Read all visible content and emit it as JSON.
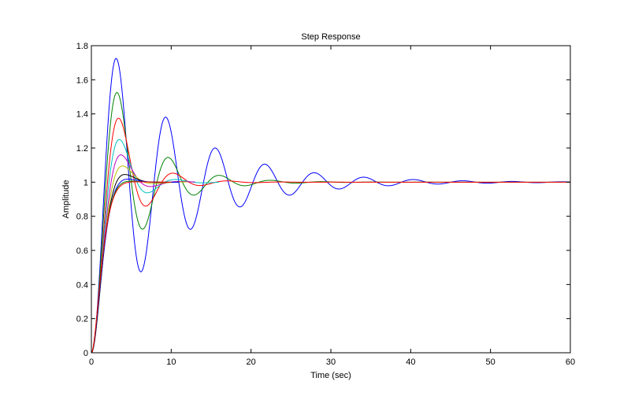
{
  "chart_data": {
    "type": "line",
    "title": "Step Response",
    "xlabel": "Time (sec)",
    "ylabel": "Amplitude",
    "xlim": [
      0,
      60
    ],
    "ylim": [
      0,
      1.8
    ],
    "xticks": [
      0,
      10,
      20,
      30,
      40,
      50,
      60
    ],
    "xtick_labels": [
      "0",
      "10",
      "20",
      "30",
      "40",
      "50",
      "60"
    ],
    "yticks": [
      0,
      0.2,
      0.4,
      0.6,
      0.8,
      1,
      1.2,
      1.4,
      1.6,
      1.8
    ],
    "ytick_labels": [
      "0",
      "0.2",
      "0.4",
      "0.6",
      "0.8",
      "1",
      "1.2",
      "1.4",
      "1.6",
      "1.8"
    ],
    "grid": false,
    "legend": "none",
    "series": [
      {
        "color": "#0000ff",
        "overshoot": 0.725,
        "peak_time": 3.1,
        "time_end": 60
      },
      {
        "color": "#008000",
        "overshoot": 0.525,
        "peak_time": 3.2,
        "time_end": 60
      },
      {
        "color": "#ff0000",
        "overshoot": 0.375,
        "peak_time": 3.4,
        "time_end": 60
      },
      {
        "color": "#00bfbf",
        "overshoot": 0.25,
        "peak_time": 3.5,
        "time_end": 16
      },
      {
        "color": "#bf00bf",
        "overshoot": 0.16,
        "peak_time": 3.7,
        "time_end": 13
      },
      {
        "color": "#bfbf00",
        "overshoot": 0.095,
        "peak_time": 3.9,
        "time_end": 12
      },
      {
        "color": "#000000",
        "overshoot": 0.045,
        "peak_time": 4.2,
        "time_end": 11
      },
      {
        "color": "#0000ff",
        "overshoot": 0.018,
        "peak_time": 4.6,
        "time_end": 11
      },
      {
        "color": "#008000",
        "overshoot": 0.006,
        "peak_time": 5.0,
        "time_end": 10
      },
      {
        "color": "#ff0000",
        "overshoot": 0.002,
        "peak_time": 5.6,
        "time_end": 10
      }
    ]
  }
}
